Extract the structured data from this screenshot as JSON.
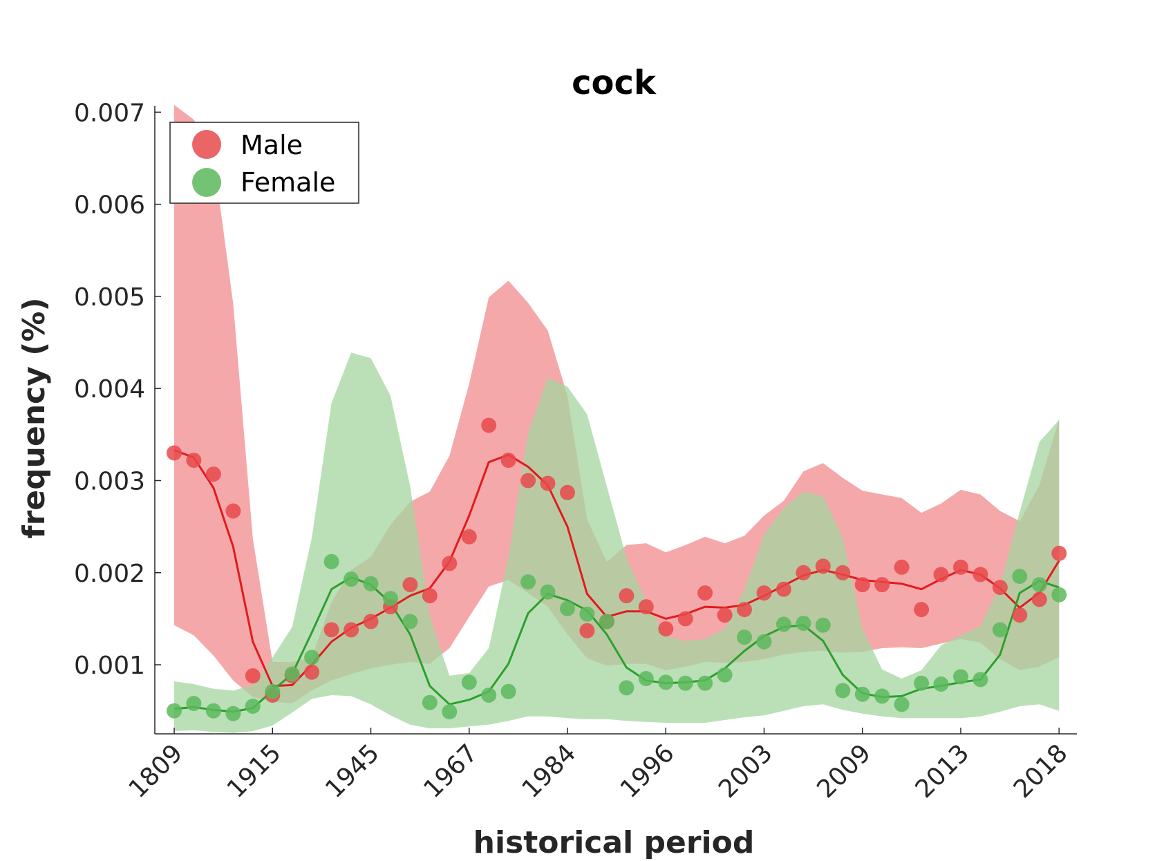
{
  "chart_data": {
    "type": "line",
    "title": "cock",
    "xlabel": "historical period",
    "ylabel": "frequency (%)",
    "x_tick_labels": [
      "1809",
      "1915",
      "1945",
      "1967",
      "1984",
      "1996",
      "2003",
      "2009",
      "2013",
      "2018"
    ],
    "y_ticks": [
      0.001,
      0.002,
      0.003,
      0.004,
      0.005,
      0.006,
      0.007
    ],
    "y_tick_labels": [
      "0.001",
      "0.002",
      "0.003",
      "0.004",
      "0.005",
      "0.006",
      "0.007"
    ],
    "ylim": [
      0.00025,
      0.00707
    ],
    "n_points": 46,
    "legend": {
      "position": "top-left",
      "entries": [
        "Male",
        "Female"
      ]
    },
    "series": [
      {
        "name": "Male",
        "color": "#e31a1c",
        "point_color": "#e8494b",
        "band_color": "#f4a3a5",
        "points": [
          0.0033,
          0.00322,
          0.00307,
          0.00267,
          0.00088,
          0.00067,
          0.00088,
          0.00092,
          0.00138,
          0.00138,
          0.00147,
          0.00163,
          0.00187,
          0.00175,
          0.0021,
          0.00239,
          0.0036,
          0.00322,
          0.003,
          0.00297,
          0.00287,
          0.00137,
          0.00147,
          0.00175,
          0.00163,
          0.00139,
          0.0015,
          0.00178,
          0.00154,
          0.0016,
          0.00178,
          0.00182,
          0.002,
          0.00207,
          0.002,
          0.00187,
          0.00187,
          0.00206,
          0.0016,
          0.00198,
          0.00206,
          0.00198,
          0.00184,
          0.00154,
          0.00171,
          0.00221
        ],
        "smooth": [
          0.00333,
          0.00325,
          0.00292,
          0.00228,
          0.00125,
          0.00077,
          0.00078,
          0.001,
          0.00125,
          0.0014,
          0.0015,
          0.00162,
          0.00175,
          0.00183,
          0.00212,
          0.00262,
          0.0032,
          0.00328,
          0.00315,
          0.00295,
          0.0025,
          0.00177,
          0.00152,
          0.00158,
          0.00158,
          0.0015,
          0.00155,
          0.00163,
          0.00162,
          0.00165,
          0.00175,
          0.00186,
          0.00197,
          0.00203,
          0.00198,
          0.00192,
          0.0019,
          0.00188,
          0.00182,
          0.00193,
          0.00203,
          0.00198,
          0.00183,
          0.00162,
          0.00178,
          0.00213
        ],
        "band_upper": [
          0.00708,
          0.00692,
          0.00652,
          0.00492,
          0.00237,
          0.00103,
          0.00103,
          0.00108,
          0.00168,
          0.00203,
          0.00217,
          0.00252,
          0.00277,
          0.00288,
          0.00327,
          0.00405,
          0.00499,
          0.00517,
          0.00493,
          0.00463,
          0.00392,
          0.00258,
          0.00212,
          0.0023,
          0.00232,
          0.00222,
          0.0023,
          0.00239,
          0.00232,
          0.0024,
          0.00262,
          0.00278,
          0.0031,
          0.00319,
          0.00303,
          0.00289,
          0.00285,
          0.00281,
          0.00265,
          0.00275,
          0.0029,
          0.00285,
          0.00267,
          0.00256,
          0.00295,
          0.00367
        ],
        "band_lower": [
          0.00143,
          0.00132,
          0.0011,
          0.00083,
          0.00065,
          0.0006,
          0.00058,
          0.00072,
          0.00083,
          0.0009,
          0.00096,
          0.001,
          0.00103,
          0.00101,
          0.00118,
          0.00152,
          0.00185,
          0.00192,
          0.00178,
          0.00163,
          0.00133,
          0.00107,
          0.00099,
          0.00101,
          0.00101,
          0.00094,
          0.00098,
          0.00103,
          0.00102,
          0.00103,
          0.00106,
          0.00111,
          0.00114,
          0.00115,
          0.00113,
          0.00114,
          0.00118,
          0.00119,
          0.00118,
          0.00123,
          0.00128,
          0.00124,
          0.00106,
          0.00094,
          0.00098,
          0.00108
        ]
      },
      {
        "name": "Female",
        "color": "#2ca02c",
        "point_color": "#5cb85c",
        "band_color": "#a4d6a0",
        "points": [
          0.0005,
          0.00058,
          0.0005,
          0.00047,
          0.00055,
          0.00071,
          0.0009,
          0.00108,
          0.00212,
          0.00193,
          0.00188,
          0.00172,
          0.00147,
          0.00059,
          0.00049,
          0.00081,
          0.00067,
          0.00071,
          0.0019,
          0.00179,
          0.00161,
          0.00155,
          0.00147,
          0.00075,
          0.00085,
          0.00081,
          0.0008,
          0.0008,
          0.00089,
          0.0013,
          0.00125,
          0.00144,
          0.00145,
          0.00143,
          0.00072,
          0.00068,
          0.00066,
          0.00057,
          0.0008,
          0.00079,
          0.00087,
          0.00084,
          0.00138,
          0.00196,
          0.00187,
          0.00176
        ],
        "smooth": [
          0.00052,
          0.00054,
          0.00051,
          0.00049,
          0.00053,
          0.00072,
          0.0009,
          0.00135,
          0.00182,
          0.00195,
          0.00187,
          0.00167,
          0.00133,
          0.00077,
          0.00057,
          0.00062,
          0.00071,
          0.00101,
          0.00156,
          0.00177,
          0.0017,
          0.00159,
          0.00133,
          0.00097,
          0.00083,
          0.0008,
          0.00081,
          0.00083,
          0.00096,
          0.00115,
          0.00131,
          0.00141,
          0.00143,
          0.00126,
          0.00089,
          0.00069,
          0.00065,
          0.00066,
          0.00074,
          0.00077,
          0.00081,
          0.00084,
          0.00111,
          0.00178,
          0.00191,
          0.00184
        ],
        "band_upper": [
          0.00082,
          0.00079,
          0.00074,
          0.00072,
          0.00078,
          0.00108,
          0.00141,
          0.00238,
          0.00384,
          0.00439,
          0.00433,
          0.00392,
          0.00294,
          0.00153,
          0.00088,
          0.00091,
          0.00118,
          0.00217,
          0.00352,
          0.00412,
          0.00402,
          0.00372,
          0.00294,
          0.00216,
          0.00169,
          0.00131,
          0.00126,
          0.00128,
          0.00139,
          0.00182,
          0.00241,
          0.0027,
          0.00288,
          0.00283,
          0.00238,
          0.00139,
          0.00095,
          0.00085,
          0.00094,
          0.00121,
          0.00132,
          0.00142,
          0.00186,
          0.00266,
          0.00342,
          0.00366
        ],
        "band_lower": [
          0.00028,
          0.00029,
          0.00027,
          0.00026,
          0.00028,
          0.00034,
          0.00048,
          0.00063,
          0.00067,
          0.00066,
          0.00057,
          0.00045,
          0.00035,
          0.00031,
          0.00031,
          0.00033,
          0.00035,
          0.00039,
          0.00044,
          0.00044,
          0.00042,
          0.00041,
          0.00041,
          0.00039,
          0.00038,
          0.00037,
          0.00037,
          0.00037,
          0.0004,
          0.00043,
          0.00045,
          0.0005,
          0.00055,
          0.00057,
          0.00051,
          0.00047,
          0.00044,
          0.00042,
          0.00042,
          0.00042,
          0.00042,
          0.00044,
          0.00049,
          0.00055,
          0.00057,
          0.0005
        ]
      }
    ]
  }
}
